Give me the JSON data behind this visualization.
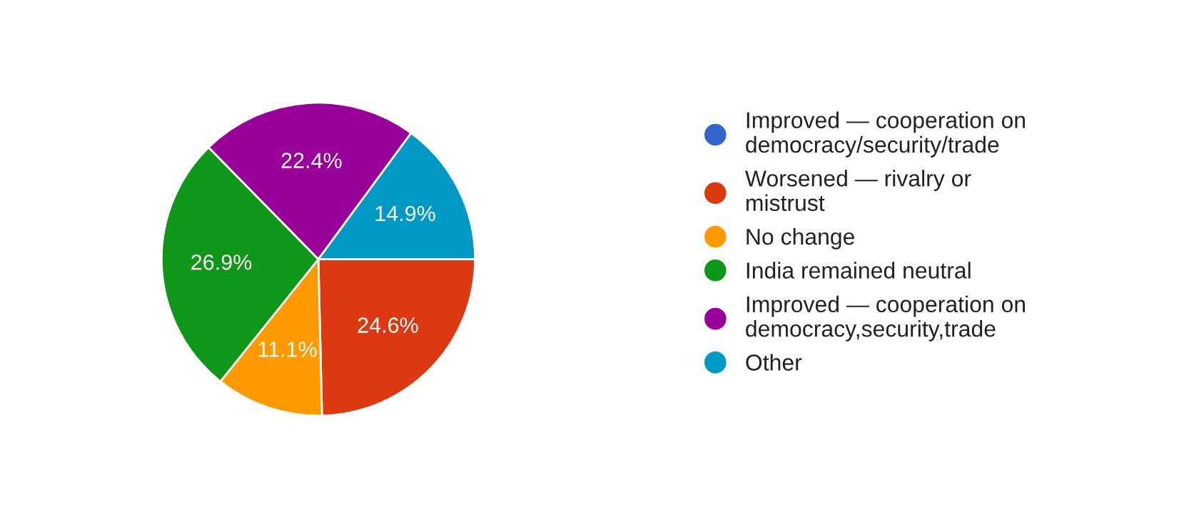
{
  "chart_data": {
    "type": "pie",
    "categories": [
      "Improved — cooperation on democracy/security/trade",
      "Worsened — rivalry or mistrust",
      "No change",
      "India remained neutral",
      "Improved — cooperation on democracy,security,trade",
      "Other"
    ],
    "values": [
      0,
      24.6,
      11.1,
      26.9,
      22.4,
      14.9
    ],
    "colors": [
      "#3366cc",
      "#dc3912",
      "#ff9900",
      "#109618",
      "#990099",
      "#0099c6"
    ],
    "value_labels": [
      null,
      "24.6%",
      "11.1%",
      "26.9%",
      "22.4%",
      "14.9%"
    ],
    "legend": "right"
  }
}
